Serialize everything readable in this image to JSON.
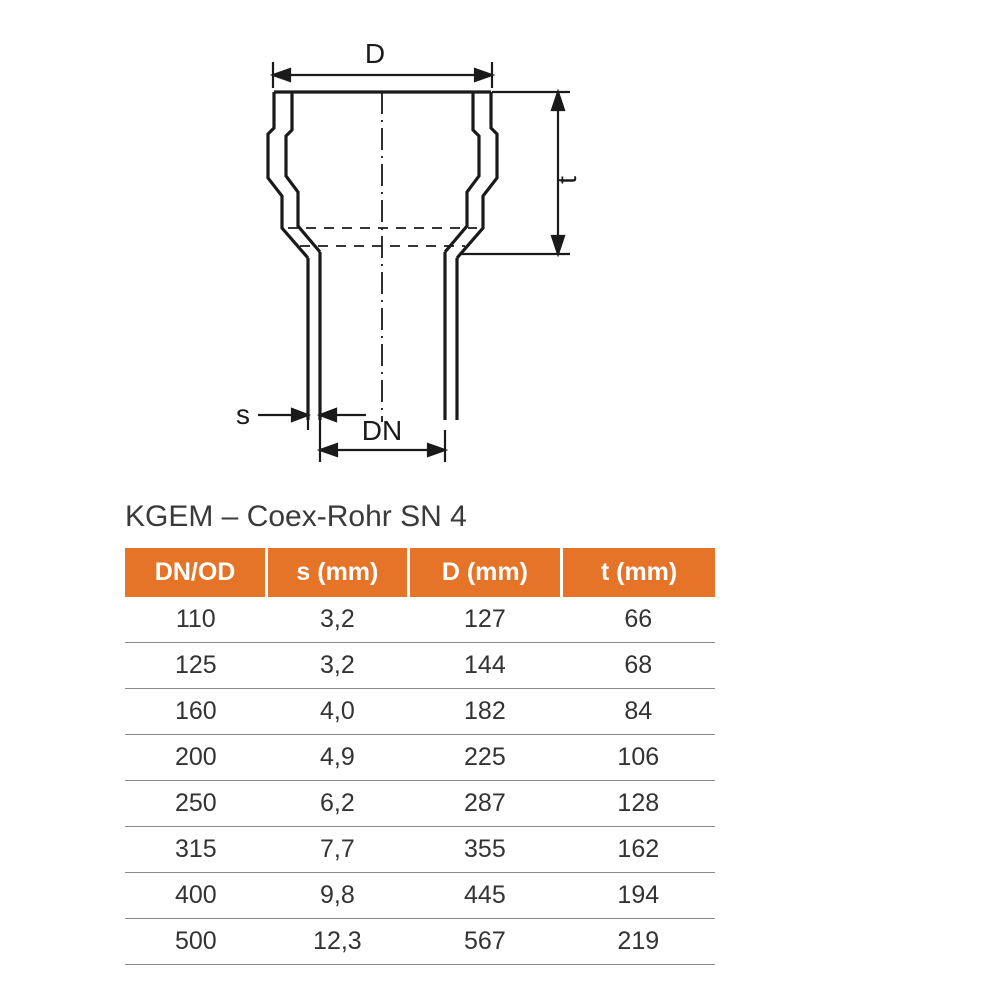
{
  "diagram": {
    "labels": {
      "D": "D",
      "t": "t",
      "s": "s",
      "DN": "DN"
    },
    "stroke_color": "#1a1a1a",
    "stroke_width_main": 3.2,
    "stroke_width_dim": 2.2,
    "stroke_width_dash": 1.8,
    "dash_pattern": "10 8",
    "dash_pattern_center": "22 6 2 6",
    "font_size_label": 28,
    "font_family": "Arial, sans-serif"
  },
  "title": "KGEM – Coex-Rohr SN 4",
  "table": {
    "header_bg": "#e67428",
    "header_fg": "#ffffff",
    "cell_fg": "#333333",
    "border_color": "#8a8a8a",
    "header_fontsize": 25,
    "cell_fontsize": 25,
    "columns": [
      "DN/OD",
      "s (mm)",
      "D (mm)",
      "t (mm)"
    ],
    "rows": [
      [
        "110",
        "3,2",
        "127",
        "66"
      ],
      [
        "125",
        "3,2",
        "144",
        "68"
      ],
      [
        "160",
        "4,0",
        "182",
        "84"
      ],
      [
        "200",
        "4,9",
        "225",
        "106"
      ],
      [
        "250",
        "6,2",
        "287",
        "128"
      ],
      [
        "315",
        "7,7",
        "355",
        "162"
      ],
      [
        "400",
        "9,8",
        "445",
        "194"
      ],
      [
        "500",
        "12,3",
        "567",
        "219"
      ]
    ]
  }
}
